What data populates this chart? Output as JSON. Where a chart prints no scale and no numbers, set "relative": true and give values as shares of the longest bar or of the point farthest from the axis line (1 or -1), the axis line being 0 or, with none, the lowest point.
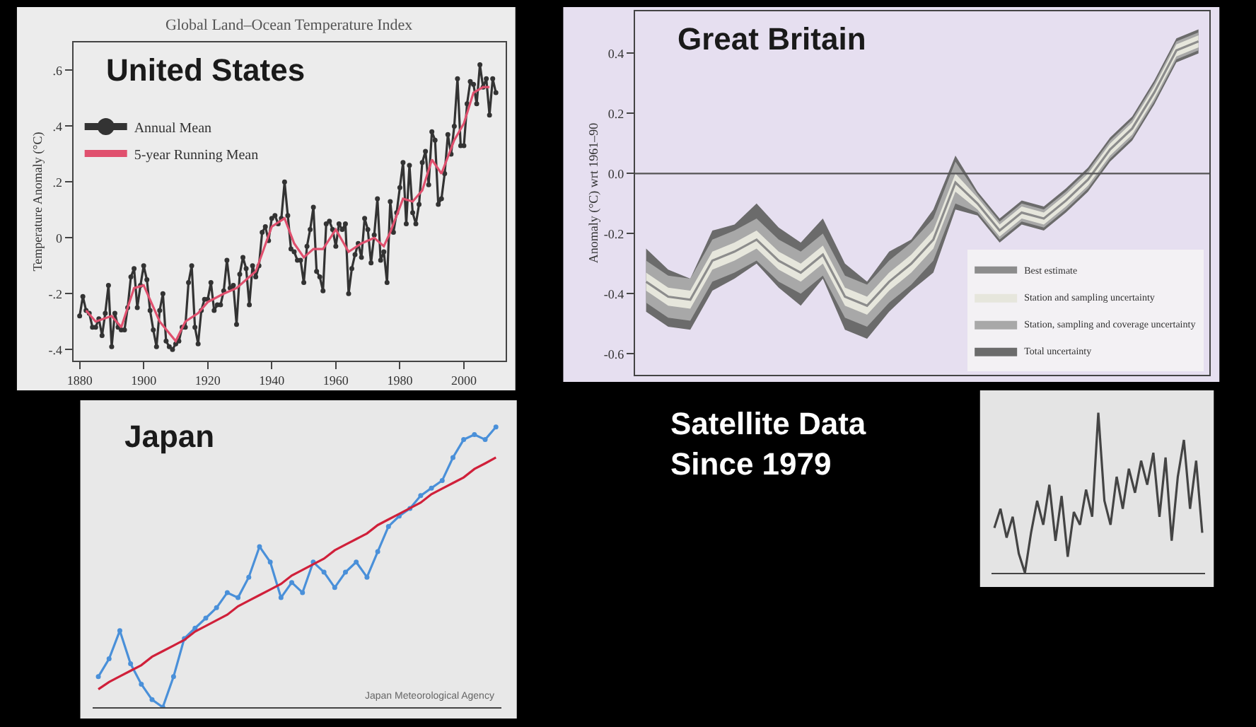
{
  "chart_data": [
    {
      "type": "line",
      "title": "United States",
      "subtitle": "Global Land–Ocean Temperature Index",
      "ylabel": "Temperature Anomaly (°C)",
      "xlim": [
        1878,
        2013
      ],
      "xticks": [
        1880,
        1900,
        1920,
        1940,
        1960,
        1980,
        2000
      ],
      "ylim": [
        -0.44,
        0.7
      ],
      "yticks": [
        {
          "value": -0.4,
          "label": "-.4"
        },
        {
          "value": -0.2,
          "label": "-.2"
        },
        {
          "value": 0,
          "label": "0"
        },
        {
          "value": 0.2,
          "label": ".2"
        },
        {
          "value": 0.4,
          "label": ".4"
        },
        {
          "value": 0.6,
          "label": ".6"
        }
      ],
      "legend": "top left",
      "series": [
        {
          "name": "Annual Mean",
          "color": "#333333",
          "marker": "circle",
          "x": [
            1880,
            1881,
            1882,
            1883,
            1884,
            1885,
            1886,
            1887,
            1888,
            1889,
            1890,
            1891,
            1892,
            1893,
            1894,
            1895,
            1896,
            1897,
            1898,
            1899,
            1900,
            1901,
            1902,
            1903,
            1904,
            1905,
            1906,
            1907,
            1908,
            1909,
            1910,
            1911,
            1912,
            1913,
            1914,
            1915,
            1916,
            1917,
            1918,
            1919,
            1920,
            1921,
            1922,
            1923,
            1924,
            1925,
            1926,
            1927,
            1928,
            1929,
            1930,
            1931,
            1932,
            1933,
            1934,
            1935,
            1936,
            1937,
            1938,
            1939,
            1940,
            1941,
            1942,
            1943,
            1944,
            1945,
            1946,
            1947,
            1948,
            1949,
            1950,
            1951,
            1952,
            1953,
            1954,
            1955,
            1956,
            1957,
            1958,
            1959,
            1960,
            1961,
            1962,
            1963,
            1964,
            1965,
            1966,
            1967,
            1968,
            1969,
            1970,
            1971,
            1972,
            1973,
            1974,
            1975,
            1976,
            1977,
            1978,
            1979,
            1980,
            1981,
            1982,
            1983,
            1984,
            1985,
            1986,
            1987,
            1988,
            1989,
            1990,
            1991,
            1992,
            1993,
            1994,
            1995,
            1996,
            1997,
            1998,
            1999,
            2000,
            2001,
            2002,
            2003,
            2004,
            2005,
            2006,
            2007,
            2008,
            2009,
            2010
          ],
          "values": [
            -0.28,
            -0.21,
            -0.26,
            -0.27,
            -0.32,
            -0.32,
            -0.29,
            -0.35,
            -0.27,
            -0.17,
            -0.39,
            -0.27,
            -0.32,
            -0.33,
            -0.33,
            -0.25,
            -0.14,
            -0.11,
            -0.25,
            -0.17,
            -0.1,
            -0.15,
            -0.26,
            -0.33,
            -0.39,
            -0.26,
            -0.2,
            -0.37,
            -0.39,
            -0.4,
            -0.38,
            -0.37,
            -0.32,
            -0.32,
            -0.16,
            -0.1,
            -0.32,
            -0.38,
            -0.26,
            -0.22,
            -0.22,
            -0.16,
            -0.26,
            -0.24,
            -0.24,
            -0.19,
            -0.08,
            -0.18,
            -0.17,
            -0.31,
            -0.13,
            -0.07,
            -0.11,
            -0.24,
            -0.1,
            -0.14,
            -0.1,
            0.02,
            0.04,
            -0.01,
            0.07,
            0.08,
            0.05,
            0.07,
            0.2,
            0.08,
            -0.04,
            -0.05,
            -0.08,
            -0.08,
            -0.16,
            -0.03,
            0.03,
            0.11,
            -0.12,
            -0.14,
            -0.19,
            0.05,
            0.06,
            0.03,
            -0.03,
            0.05,
            0.03,
            0.05,
            -0.2,
            -0.11,
            -0.06,
            -0.02,
            -0.07,
            0.07,
            0.03,
            -0.09,
            0.01,
            0.14,
            -0.08,
            -0.05,
            -0.16,
            0.13,
            0.02,
            0.09,
            0.18,
            0.27,
            0.05,
            0.26,
            0.09,
            0.05,
            0.12,
            0.27,
            0.31,
            0.19,
            0.38,
            0.35,
            0.12,
            0.14,
            0.23,
            0.37,
            0.3,
            0.4,
            0.57,
            0.33,
            0.33,
            0.48,
            0.56,
            0.55,
            0.48,
            0.62,
            0.54,
            0.57,
            0.44,
            0.57,
            0.52
          ]
        },
        {
          "name": "5-year Running Mean",
          "color": "#e0506e",
          "marker": "none",
          "x": [
            1882,
            1885,
            1890,
            1893,
            1897,
            1900,
            1905,
            1910,
            1913,
            1917,
            1920,
            1925,
            1929,
            1932,
            1935,
            1940,
            1944,
            1947,
            1950,
            1953,
            1956,
            1960,
            1964,
            1968,
            1972,
            1975,
            1977,
            1981,
            1984,
            1987,
            1990,
            1993,
            1997,
            2000,
            2003,
            2006,
            2008
          ],
          "values": [
            -0.26,
            -0.3,
            -0.28,
            -0.32,
            -0.18,
            -0.17,
            -0.3,
            -0.37,
            -0.3,
            -0.27,
            -0.23,
            -0.2,
            -0.18,
            -0.15,
            -0.12,
            0.04,
            0.07,
            -0.02,
            -0.07,
            -0.04,
            -0.04,
            0.03,
            -0.05,
            -0.02,
            0.0,
            -0.03,
            0.02,
            0.14,
            0.13,
            0.17,
            0.28,
            0.23,
            0.35,
            0.41,
            0.52,
            0.54,
            0.54
          ]
        }
      ]
    },
    {
      "type": "line",
      "title": "Great Britain",
      "ylabel": "Anomaly (°C) wrt 1961–90",
      "tick_labels": "y",
      "categories": [
        null,
        null,
        null,
        null,
        null,
        null,
        null,
        null,
        null,
        null,
        null,
        null,
        null,
        null,
        null,
        null,
        null,
        null,
        null,
        null,
        null,
        null,
        null,
        null,
        null,
        null
      ],
      "ylim": [
        -0.67,
        0.54
      ],
      "yticks": [
        {
          "value": -0.6,
          "label": "-0.6"
        },
        {
          "value": -0.4,
          "label": "-0.4"
        },
        {
          "value": -0.2,
          "label": "-0.2"
        },
        {
          "value": 0,
          "label": "0.0"
        },
        {
          "value": 0.2,
          "label": "0.2"
        },
        {
          "value": 0.4,
          "label": "0.4"
        }
      ],
      "legend": "bottom right",
      "ref_lines": [
        {
          "axis": "y",
          "value": 0,
          "color": "#555555"
        }
      ],
      "series": [
        {
          "name": "Total uncertainty",
          "color": "#6b6b6b",
          "values": [
            null,
            null,
            null,
            null,
            null,
            null,
            null,
            null,
            null,
            null,
            null,
            null,
            null,
            null,
            null,
            null,
            null,
            null,
            null,
            null,
            null,
            null,
            null,
            null,
            null,
            null
          ],
          "upper": [
            -0.25,
            -0.32,
            -0.35,
            -0.19,
            -0.17,
            -0.1,
            -0.18,
            -0.23,
            -0.15,
            -0.3,
            -0.36,
            -0.26,
            -0.22,
            -0.12,
            0.06,
            -0.06,
            -0.15,
            -0.09,
            -0.11,
            -0.05,
            0.02,
            0.12,
            0.19,
            0.31,
            0.45,
            0.48
          ],
          "lower": [
            -0.46,
            -0.51,
            -0.52,
            -0.39,
            -0.35,
            -0.3,
            -0.38,
            -0.44,
            -0.35,
            -0.52,
            -0.55,
            -0.46,
            -0.39,
            -0.33,
            -0.12,
            -0.14,
            -0.23,
            -0.17,
            -0.19,
            -0.13,
            -0.06,
            0.04,
            0.11,
            0.23,
            0.37,
            0.4
          ]
        },
        {
          "name": "Station, sampling and coverage uncertainty",
          "color": "#a8a8a8",
          "values": [
            null,
            null,
            null,
            null,
            null,
            null,
            null,
            null,
            null,
            null,
            null,
            null,
            null,
            null,
            null,
            null,
            null,
            null,
            null,
            null,
            null,
            null,
            null,
            null,
            null,
            null
          ],
          "upper": [
            -0.29,
            -0.34,
            -0.35,
            -0.22,
            -0.19,
            -0.15,
            -0.22,
            -0.26,
            -0.2,
            -0.34,
            -0.37,
            -0.29,
            -0.23,
            -0.15,
            0.04,
            -0.07,
            -0.16,
            -0.1,
            -0.12,
            -0.06,
            0.01,
            0.11,
            0.18,
            0.3,
            0.44,
            0.47
          ],
          "lower": [
            -0.43,
            -0.48,
            -0.49,
            -0.36,
            -0.33,
            -0.29,
            -0.36,
            -0.4,
            -0.34,
            -0.48,
            -0.51,
            -0.43,
            -0.37,
            -0.29,
            -0.1,
            -0.13,
            -0.22,
            -0.16,
            -0.18,
            -0.12,
            -0.05,
            0.05,
            0.12,
            0.24,
            0.38,
            0.41
          ]
        },
        {
          "name": "Station and sampling uncertainty",
          "color": "#e6e6dc",
          "values": [
            null,
            null,
            null,
            null,
            null,
            null,
            null,
            null,
            null,
            null,
            null,
            null,
            null,
            null,
            null,
            null,
            null,
            null,
            null,
            null,
            null,
            null,
            null,
            null,
            null,
            null
          ],
          "upper": [
            -0.33,
            -0.38,
            -0.39,
            -0.26,
            -0.23,
            -0.19,
            -0.26,
            -0.3,
            -0.24,
            -0.38,
            -0.41,
            -0.33,
            -0.27,
            -0.19,
            0.0,
            -0.08,
            -0.17,
            -0.11,
            -0.13,
            -0.07,
            0.0,
            0.1,
            0.17,
            0.29,
            0.43,
            0.46
          ],
          "lower": [
            -0.39,
            -0.44,
            -0.45,
            -0.32,
            -0.29,
            -0.25,
            -0.32,
            -0.36,
            -0.3,
            -0.44,
            -0.47,
            -0.39,
            -0.33,
            -0.25,
            -0.06,
            -0.12,
            -0.21,
            -0.15,
            -0.17,
            -0.11,
            -0.04,
            0.06,
            0.13,
            0.25,
            0.39,
            0.42
          ]
        },
        {
          "name": "Best estimate",
          "color": "#8c8c8c",
          "marker": "none",
          "values": [
            -0.36,
            -0.41,
            -0.42,
            -0.29,
            -0.26,
            -0.22,
            -0.29,
            -0.33,
            -0.27,
            -0.41,
            -0.44,
            -0.36,
            -0.3,
            -0.22,
            -0.03,
            -0.1,
            -0.19,
            -0.13,
            -0.15,
            -0.09,
            -0.02,
            0.08,
            0.15,
            0.27,
            0.41,
            0.44
          ]
        }
      ]
    },
    {
      "type": "line",
      "title": "Japan",
      "relative": true,
      "tick_labels": false,
      "annotations": [
        "Japan Meteorological Agency"
      ],
      "categories": [
        null,
        null,
        null,
        null,
        null,
        null,
        null,
        null,
        null,
        null,
        null,
        null,
        null,
        null,
        null,
        null,
        null,
        null,
        null,
        null,
        null,
        null,
        null,
        null,
        null,
        null,
        null,
        null,
        null,
        null,
        null,
        null,
        null,
        null,
        null,
        null,
        null,
        null
      ],
      "series": [
        {
          "color": "#4a90d9",
          "marker": "circle",
          "values": [
            0.109,
            0.173,
            0.273,
            0.155,
            0.082,
            0.027,
            0,
            0.109,
            0.245,
            0.282,
            0.318,
            0.355,
            0.409,
            0.391,
            0.464,
            0.573,
            0.518,
            0.391,
            0.445,
            0.409,
            0.518,
            0.482,
            0.427,
            0.482,
            0.518,
            0.464,
            0.555,
            0.645,
            0.682,
            0.709,
            0.755,
            0.782,
            0.809,
            0.891,
            0.955,
            0.973,
            0.955,
            1
          ]
        },
        {
          "color": "#d0203a",
          "marker": "none",
          "values": [
            0.064,
            0.09,
            0.11,
            0.13,
            0.15,
            0.18,
            0.2,
            0.22,
            0.24,
            0.27,
            0.29,
            0.31,
            0.33,
            0.36,
            0.38,
            0.4,
            0.42,
            0.44,
            0.47,
            0.49,
            0.51,
            0.53,
            0.56,
            0.58,
            0.6,
            0.62,
            0.65,
            0.67,
            0.69,
            0.71,
            0.73,
            0.76,
            0.78,
            0.8,
            0.82,
            0.85,
            0.87,
            0.891
          ]
        }
      ]
    },
    {
      "type": "line",
      "relative": true,
      "tick_labels": false,
      "categories": [
        null,
        null,
        null,
        null,
        null,
        null,
        null,
        null,
        null,
        null,
        null,
        null,
        null,
        null,
        null,
        null,
        null,
        null,
        null,
        null,
        null,
        null,
        null,
        null,
        null,
        null,
        null,
        null,
        null,
        null,
        null,
        null,
        null,
        null,
        null
      ],
      "series": [
        {
          "color": "#444444",
          "marker": "none",
          "values": [
            0.28,
            0.4,
            0.22,
            0.35,
            0.12,
            0.0,
            0.25,
            0.45,
            0.3,
            0.55,
            0.2,
            0.48,
            0.1,
            0.38,
            0.3,
            0.52,
            0.35,
            1.0,
            0.45,
            0.3,
            0.6,
            0.4,
            0.65,
            0.5,
            0.7,
            0.55,
            0.75,
            0.35,
            0.72,
            0.2,
            0.6,
            0.83,
            0.4,
            0.7,
            0.25
          ]
        }
      ]
    },
    {
      "type": "other",
      "title": "Satellite Data\nSince 1979"
    }
  ]
}
